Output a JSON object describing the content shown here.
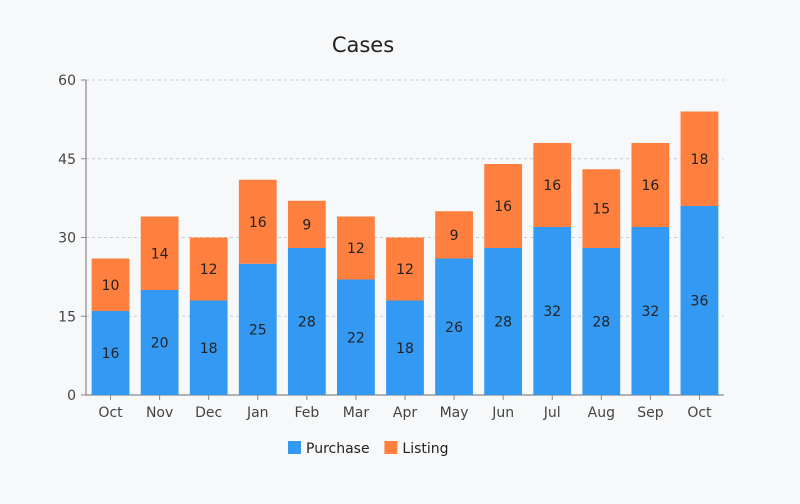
{
  "chart_data": {
    "type": "bar",
    "stacked": true,
    "title": "Cases",
    "xlabel": "",
    "ylabel": "",
    "ylim": [
      0,
      60
    ],
    "yticks": [
      0,
      15,
      30,
      45,
      60
    ],
    "grid": true,
    "legend_position": "bottom-center",
    "categories": [
      "Oct",
      "Nov",
      "Dec",
      "Jan",
      "Feb",
      "Mar",
      "Apr",
      "May",
      "Jun",
      "Jul",
      "Aug",
      "Sep",
      "Oct"
    ],
    "series": [
      {
        "name": "Purchase",
        "color": "#3399f3",
        "values": [
          16,
          20,
          18,
          25,
          28,
          22,
          18,
          26,
          28,
          32,
          28,
          32,
          36
        ]
      },
      {
        "name": "Listing",
        "color": "#ff7f3f",
        "values": [
          10,
          14,
          12,
          16,
          9,
          12,
          12,
          9,
          16,
          16,
          15,
          16,
          18
        ]
      }
    ]
  }
}
